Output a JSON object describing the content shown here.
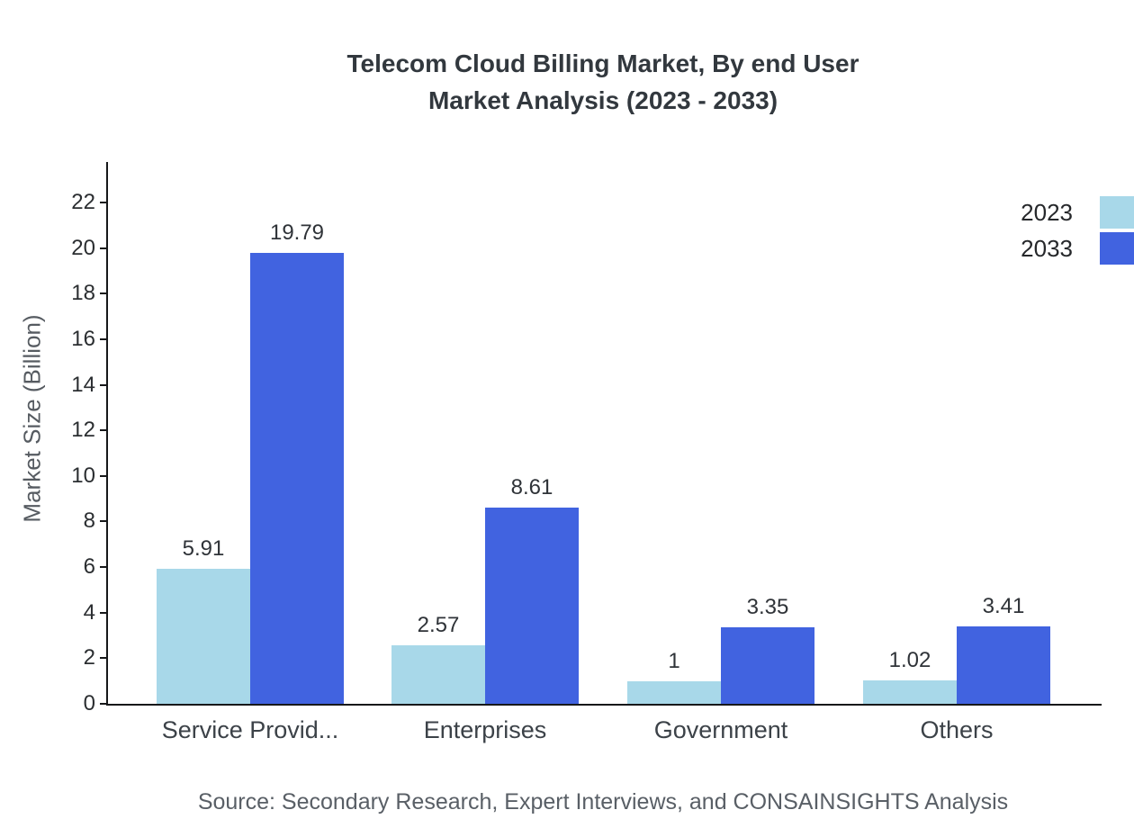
{
  "title": {
    "line1": "Telecom Cloud Billing Market, By end User",
    "line2": "Market Analysis (2023 - 2033)"
  },
  "ylabel": "Market Size (Billion)",
  "source": "Source: Secondary Research, Expert Interviews, and CONSAINSIGHTS Analysis",
  "legend": [
    {
      "label": "2023",
      "color": "#a8d8e9"
    },
    {
      "label": "2033",
      "color": "#4163e0"
    }
  ],
  "chart_data": {
    "type": "bar",
    "title": "Telecom Cloud Billing Market, By end User Market Analysis (2023 - 2033)",
    "categories": [
      "Service Provid...",
      "Enterprises",
      "Government",
      "Others"
    ],
    "series": [
      {
        "name": "2023",
        "color": "#a8d8e9",
        "values": [
          5.91,
          2.57,
          1,
          1.02
        ]
      },
      {
        "name": "2033",
        "color": "#4163e0",
        "values": [
          19.79,
          8.61,
          3.35,
          3.41
        ]
      }
    ],
    "xlabel": "",
    "ylabel": "Market Size (Billion)",
    "ylim": [
      0,
      22
    ],
    "yticks": [
      0,
      2,
      4,
      6,
      8,
      10,
      12,
      14,
      16,
      18,
      20,
      22
    ],
    "grid": false,
    "legend_position": "top-right"
  }
}
